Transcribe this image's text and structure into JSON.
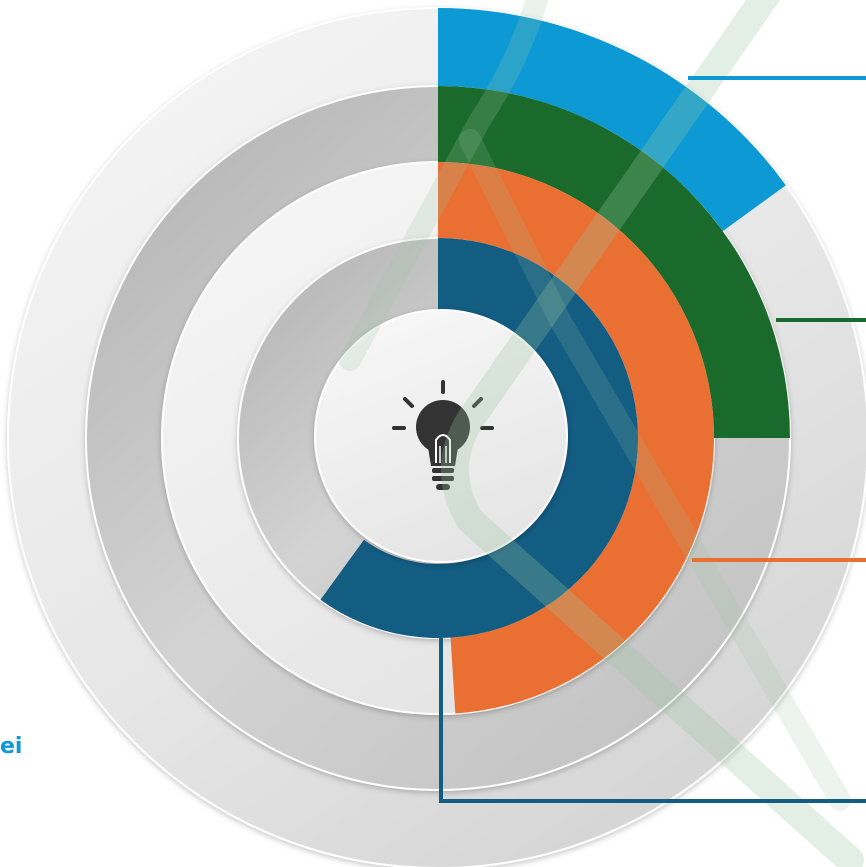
{
  "diagram": {
    "type": "radial-progress-rings",
    "center_icon": "lightbulb-icon",
    "rings": [
      {
        "name": "ring-1",
        "color": "#0d9ad4",
        "progress": 0.15
      },
      {
        "name": "ring-2",
        "color": "#1a6b2b",
        "progress": 0.25
      },
      {
        "name": "ring-3",
        "color": "#e97032",
        "progress": 0.49
      },
      {
        "name": "ring-4",
        "color": "#135c82",
        "progress": 0.6
      }
    ]
  },
  "side_label": {
    "text": "ei",
    "color": "#0d9ad4"
  },
  "decorative_stripes_color": "#9bc4a2"
}
